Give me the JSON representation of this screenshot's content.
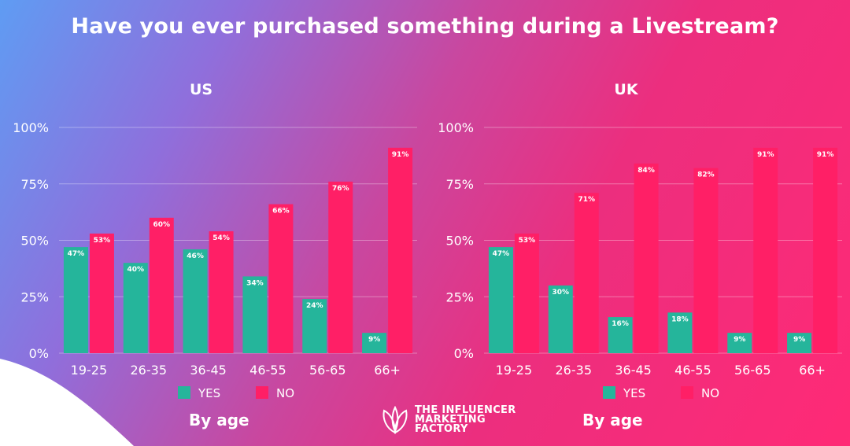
{
  "title": "Have you ever purchased something during a Livestream?",
  "colors": {
    "yes": "#25b59b",
    "no": "#ff1f66",
    "grid": "rgba(255,255,255,0.35)"
  },
  "legend": {
    "yes": "YES",
    "no": "NO"
  },
  "footer": {
    "left": "By age",
    "right": "By age"
  },
  "brand": {
    "line1": "THE INFLUENCER",
    "line2": "MARKETING",
    "line3": "FACTORY",
    "logo_icon": "leaf-logo-icon"
  },
  "chart_data": [
    {
      "type": "bar",
      "title": "US",
      "categories": [
        "19-25",
        "26-35",
        "36-45",
        "46-55",
        "56-65",
        "66+"
      ],
      "series": [
        {
          "name": "YES",
          "values": [
            47,
            40,
            46,
            34,
            24,
            9
          ]
        },
        {
          "name": "NO",
          "values": [
            53,
            60,
            54,
            66,
            76,
            91
          ]
        }
      ],
      "yticks": [
        "0%",
        "25%",
        "50%",
        "75%",
        "100%"
      ],
      "ylim": [
        0,
        100
      ],
      "grid": true,
      "legend_position": "bottom"
    },
    {
      "type": "bar",
      "title": "UK",
      "categories": [
        "19-25",
        "26-35",
        "36-45",
        "46-55",
        "56-65",
        "66+"
      ],
      "series": [
        {
          "name": "YES",
          "values": [
            47,
            30,
            16,
            18,
            9,
            9
          ]
        },
        {
          "name": "NO",
          "values": [
            53,
            71,
            84,
            82,
            91,
            91
          ]
        }
      ],
      "yticks": [
        "0%",
        "25%",
        "50%",
        "75%",
        "100%"
      ],
      "ylim": [
        0,
        100
      ],
      "grid": true,
      "legend_position": "bottom"
    }
  ]
}
